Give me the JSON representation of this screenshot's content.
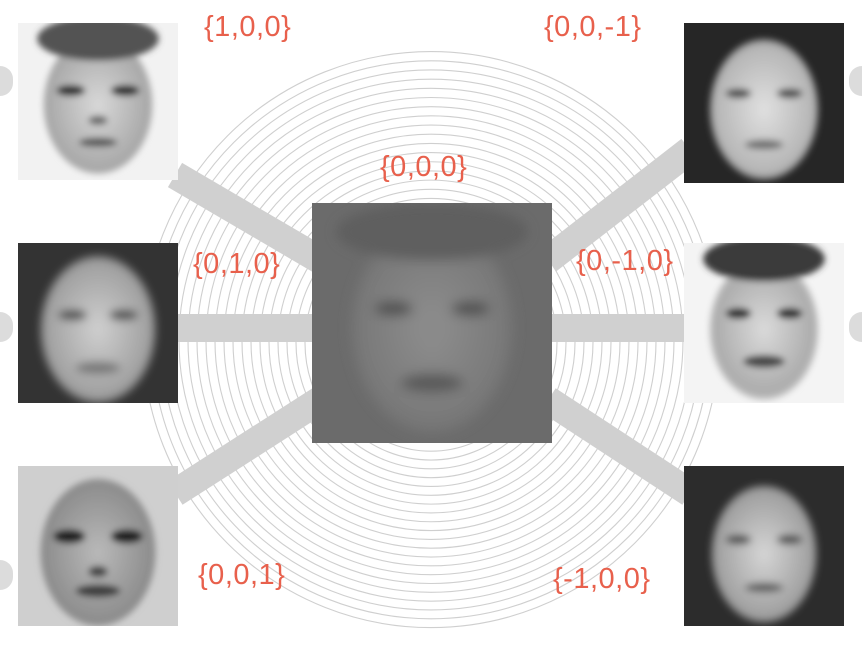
{
  "labels": {
    "center": "{0,0,0}",
    "top_left": "{1,0,0}",
    "middle_left": "{0,1,0}",
    "bottom_left": "{0,0,1}",
    "top_right": "{0,0,-1}",
    "middle_right": "{0,-1,0}",
    "bottom_right": "{-1,0,0}"
  },
  "colors": {
    "label": "#e8604c",
    "connector": "#d0d0d0",
    "ring": "#cfcfcf"
  }
}
